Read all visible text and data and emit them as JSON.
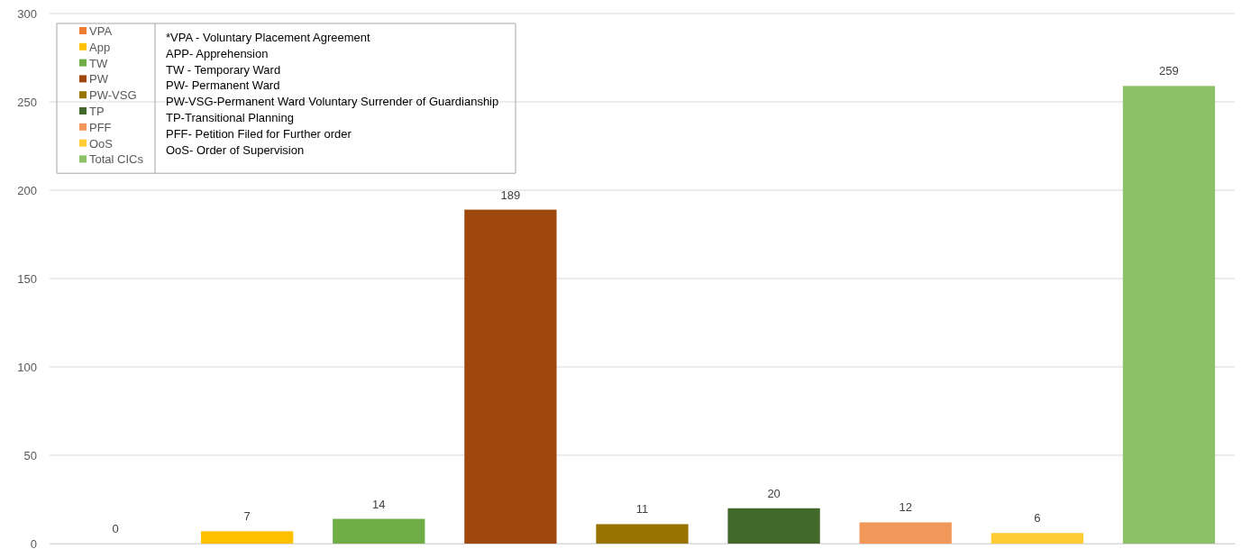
{
  "chart_data": {
    "type": "bar",
    "categories": [
      null,
      null,
      null,
      null,
      null,
      null,
      null,
      null,
      null
    ],
    "series": [
      {
        "name": "VPA",
        "color": "#ed7d31",
        "values": [
          0,
          null,
          null,
          null,
          null,
          null,
          null,
          null,
          null
        ]
      },
      {
        "name": "App",
        "color": "#ffc000",
        "values": [
          null,
          7,
          null,
          null,
          null,
          null,
          null,
          null,
          null
        ]
      },
      {
        "name": "TW",
        "color": "#70ad47",
        "values": [
          null,
          null,
          14,
          null,
          null,
          null,
          null,
          null,
          null
        ]
      },
      {
        "name": "PW",
        "color": "#9e480e",
        "values": [
          null,
          null,
          null,
          189,
          null,
          null,
          null,
          null,
          null
        ]
      },
      {
        "name": "PW-VSG",
        "color": "#997300",
        "values": [
          null,
          null,
          null,
          null,
          11,
          null,
          null,
          null,
          null
        ]
      },
      {
        "name": "TP",
        "color": "#43682b",
        "values": [
          null,
          null,
          null,
          null,
          null,
          20,
          null,
          null,
          null
        ]
      },
      {
        "name": "PFF",
        "color": "#f1975a",
        "values": [
          null,
          null,
          null,
          null,
          null,
          null,
          12,
          null,
          null
        ]
      },
      {
        "name": "OoS",
        "color": "#ffcd33",
        "values": [
          null,
          null,
          null,
          null,
          null,
          null,
          null,
          6,
          null
        ]
      },
      {
        "name": "Total CICs",
        "color": "#8cc168",
        "values": [
          null,
          null,
          null,
          null,
          null,
          null,
          null,
          null,
          259
        ]
      }
    ],
    "ylim": [
      0,
      300
    ],
    "yticks": [
      0,
      50,
      100,
      150,
      200,
      250,
      300
    ],
    "grid": "y",
    "tick_labels": "y",
    "data_labels": true,
    "legend": "top left",
    "annotations": [
      "*VPA - Voluntary Placement Agreement",
      "APP- Apprehension",
      "TW - Temporary Ward",
      "PW- Permanent Ward",
      "PW-VSG-Permanent Ward Voluntary Surrender of Guardianship",
      "TP-Transitional Planning",
      "PFF- Petition Filed for Further order",
      "OoS- Order of Supervision"
    ]
  }
}
